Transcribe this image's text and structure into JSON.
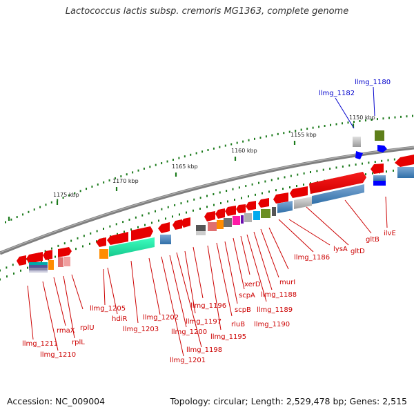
{
  "title": "Lactococcus lactis subsp. cremoris MG1363, complete genome",
  "footer": {
    "accession": "Accession: NC_009004",
    "topology": "Topology: circular; Length: 2,529,478 bp; Genes: 2,515"
  },
  "colors": {
    "backbone": "#7f7f7f",
    "tick": "#1b7a1b",
    "gene_label": "#cc0000",
    "highlight_label": "#0000cc"
  },
  "ticks": [
    {
      "label": "1150 kbp"
    },
    {
      "label": "1155 kbp"
    },
    {
      "label": "1160 kbp"
    },
    {
      "label": "1165 kbp"
    },
    {
      "label": "1170 kbp"
    },
    {
      "label": "1175 kbp"
    }
  ],
  "gene_labels": [
    {
      "text": "llmg_1180",
      "highlight": true
    },
    {
      "text": "llmg_1182",
      "highlight": true
    },
    {
      "text": "ilvE",
      "highlight": false
    },
    {
      "text": "gltB",
      "highlight": false
    },
    {
      "text": "gltD",
      "highlight": false
    },
    {
      "text": "lysA",
      "highlight": false
    },
    {
      "text": "llmg_1186",
      "highlight": false
    },
    {
      "text": "murI",
      "highlight": false
    },
    {
      "text": "llmg_1188",
      "highlight": false
    },
    {
      "text": "llmg_1189",
      "highlight": false
    },
    {
      "text": "llmg_1190",
      "highlight": false
    },
    {
      "text": "xerD",
      "highlight": false
    },
    {
      "text": "scpA",
      "highlight": false
    },
    {
      "text": "scpB",
      "highlight": false
    },
    {
      "text": "rluB",
      "highlight": false
    },
    {
      "text": "llmg_1195",
      "highlight": false
    },
    {
      "text": "llmg_1196",
      "highlight": false
    },
    {
      "text": "llmg_1197",
      "highlight": false
    },
    {
      "text": "llmg_1198",
      "highlight": false
    },
    {
      "text": "llmg_1200",
      "highlight": false
    },
    {
      "text": "llmg_1201",
      "highlight": false
    },
    {
      "text": "llmg_1202",
      "highlight": false
    },
    {
      "text": "llmg_1203",
      "highlight": false
    },
    {
      "text": "hdiR",
      "highlight": false
    },
    {
      "text": "llmg_1205",
      "highlight": false
    },
    {
      "text": "rplU",
      "highlight": false
    },
    {
      "text": "rplL",
      "highlight": false
    },
    {
      "text": "rmaX",
      "highlight": false
    },
    {
      "text": "llmg_1210",
      "highlight": false
    },
    {
      "text": "llmg_1211",
      "highlight": false
    }
  ]
}
